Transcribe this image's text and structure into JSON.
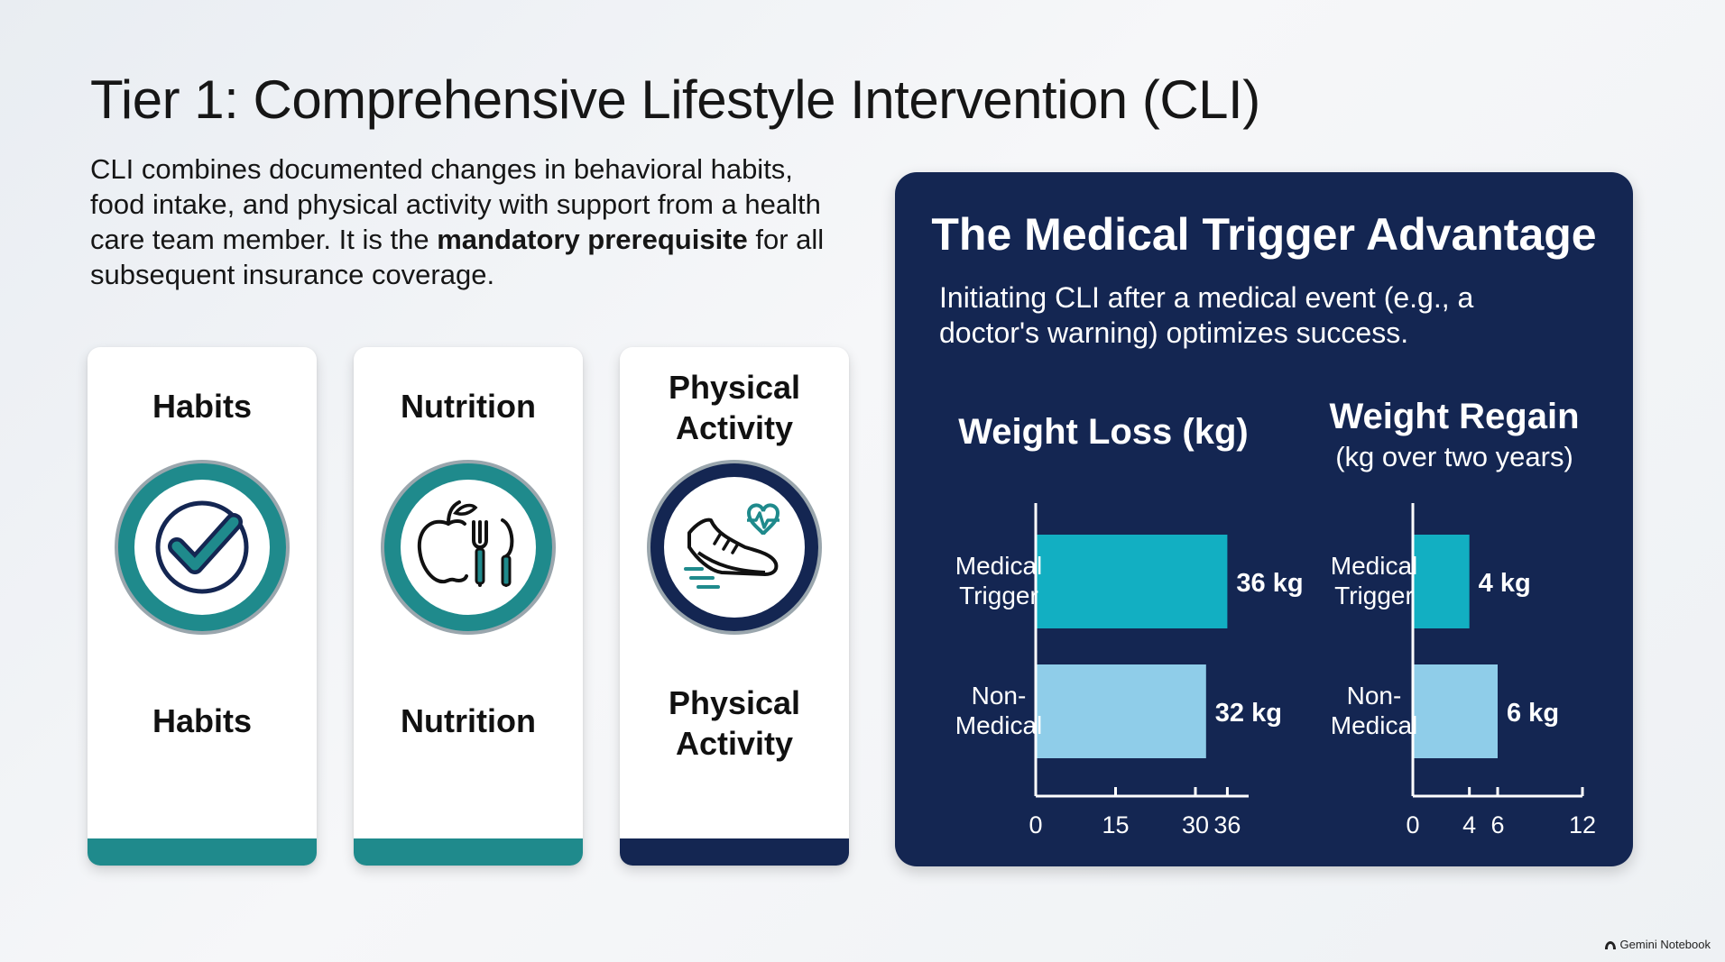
{
  "page": {
    "title": "Tier 1: Comprehensive Lifestyle Intervention (CLI)",
    "intro_text_1": "CLI combines documented changes in behavioral habits, food intake, and physical activity with support from a health care team member. It is the ",
    "intro_bold": "mandatory prerequisite",
    "intro_text_2": " for all subsequent insurance coverage."
  },
  "cards": [
    {
      "head": "Habits",
      "foot": "Habits",
      "icon": "checkmark-icon",
      "accent": "#1f8a8c"
    },
    {
      "head": "Nutrition",
      "foot": "Nutrition",
      "icon": "apple-fork-knife-icon",
      "accent": "#1f8a8c"
    },
    {
      "head_1": "Physical",
      "head_2": "Activity",
      "foot_1": "Physical",
      "foot_2": "Activity",
      "icon": "sneaker-heartbeat-icon",
      "accent": "#142652"
    }
  ],
  "panel": {
    "title": "The Medical Trigger Advantage",
    "subtitle": "Initiating CLI after a medical event (e.g., a doctor's warning) optimizes success."
  },
  "chart_data": [
    {
      "type": "bar",
      "orientation": "horizontal",
      "title": "Weight Loss (kg)",
      "categories": [
        [
          "Medical",
          "Trigger"
        ],
        [
          "Non-",
          "Medical"
        ]
      ],
      "values": [
        36,
        32
      ],
      "value_labels": [
        "36 kg",
        "32 kg"
      ],
      "bar_colors": [
        "#12afc2",
        "#8fcde9"
      ],
      "xlim": [
        0,
        40
      ],
      "xticks": [
        0,
        15,
        30,
        36
      ],
      "xtick_labels": [
        "0",
        "15",
        "30",
        "36"
      ]
    },
    {
      "type": "bar",
      "orientation": "horizontal",
      "title": "Weight Regain",
      "subtitle": "(kg over two years)",
      "categories": [
        [
          "Medical",
          "Trigger"
        ],
        [
          "Non-",
          "Medical"
        ]
      ],
      "values": [
        4,
        6
      ],
      "value_labels": [
        "4 kg",
        "6 kg"
      ],
      "bar_colors": [
        "#12afc2",
        "#8fcde9"
      ],
      "xlim": [
        0,
        12
      ],
      "xticks": [
        0,
        4,
        6,
        12
      ],
      "xtick_labels": [
        "0",
        "4",
        "6",
        "12"
      ]
    }
  ],
  "brand": {
    "label": "Gemini Notebook"
  }
}
